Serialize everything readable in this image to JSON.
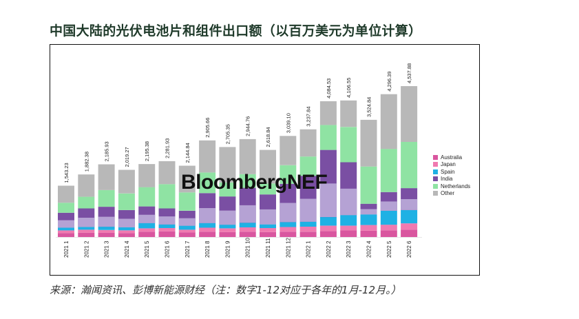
{
  "header": {
    "title": "中国大陆的光伏电池片和组件出口额（以百万美元为单位计算）"
  },
  "footer": {
    "source": "来源：瀚闻资讯、彭博新能源财经（注：数字1-12对应于各年的1月-12月。）"
  },
  "watermark": {
    "text": "BloombergNEF"
  },
  "colors": {
    "Australia": "#d9569f",
    "Japan": "#f07ab0",
    "Spain": "#1fb1e4",
    "India": "#7a4fa3",
    "Netherlands": "#8fe3a3",
    "Other": "#b8b8b8",
    "India_light": "#b5a2d4"
  },
  "chart_data": {
    "type": "bar",
    "stacked": true,
    "categories": [
      "2021 1",
      "2021 2",
      "2021 3",
      "2021 4",
      "2021 5",
      "2021 6",
      "2021 7",
      "2021 8",
      "2021 9",
      "2021 10",
      "2021 11",
      "2021 12",
      "2022 1",
      "2022 2",
      "2022 3",
      "2022 4",
      "2022 5",
      "2022 6"
    ],
    "totals": [
      1543.23,
      1882.38,
      2185.93,
      2019.27,
      2195.38,
      2281.93,
      2144.84,
      2905.66,
      2705.35,
      2944.76,
      2618.84,
      3039.1,
      3237.84,
      4084.53,
      4106.55,
      3524.84,
      4296.39,
      4537.88
    ],
    "total_labels": [
      "1,543.23",
      "1,882.38",
      "2,185.93",
      "2,019.27",
      "2,195.38",
      "2,281.93",
      "2,144.84",
      "2,905.66",
      "2,705.35",
      "2,944.76",
      "2,618.84",
      "3,039.10",
      "3,237.84",
      "4,084.53",
      "4,106.55",
      "3,524.84",
      "4,296.39",
      "4,537.88"
    ],
    "series": [
      {
        "name": "Australia",
        "values": [
          120,
          130,
          130,
          120,
          160,
          170,
          140,
          160,
          150,
          160,
          150,
          160,
          160,
          180,
          200,
          190,
          200,
          220
        ]
      },
      {
        "name": "Japan",
        "values": [
          80,
          90,
          80,
          80,
          100,
          100,
          80,
          120,
          110,
          130,
          120,
          140,
          150,
          160,
          140,
          170,
          170,
          190
        ]
      },
      {
        "name": "Spain",
        "values": [
          80,
          80,
          100,
          90,
          160,
          110,
          120,
          140,
          110,
          140,
          110,
          150,
          150,
          260,
          320,
          320,
          420,
          400
        ]
      },
      {
        "name": "India",
        "values": [
          450,
          560,
          600,
          520,
          500,
          480,
          450,
          900,
          850,
          1050,
          900,
          1150,
          1380,
          2020,
          1590,
          320,
          560,
          660
        ]
      },
      {
        "name": "Netherlands",
        "values": [
          300,
          350,
          500,
          500,
          580,
          730,
          550,
          620,
          420,
          410,
          330,
          560,
          580,
          750,
          1060,
          1120,
          1300,
          1390
        ]
      },
      {
        "name": "Other",
        "values": [
          513.23,
          672.38,
          775.93,
          709.27,
          695.38,
          691.93,
          804.84,
          965.66,
          1065.35,
          1054.76,
          1008.84,
          879.1,
          817.84,
          714.53,
          796.55,
          1404.84,
          1646.39,
          1677.88
        ]
      }
    ],
    "legend": [
      "Australia",
      "Japan",
      "Spain",
      "India",
      "Netherlands",
      "Other"
    ],
    "legend_position": "right",
    "ylim": [
      0,
      5000
    ],
    "grid": false
  }
}
